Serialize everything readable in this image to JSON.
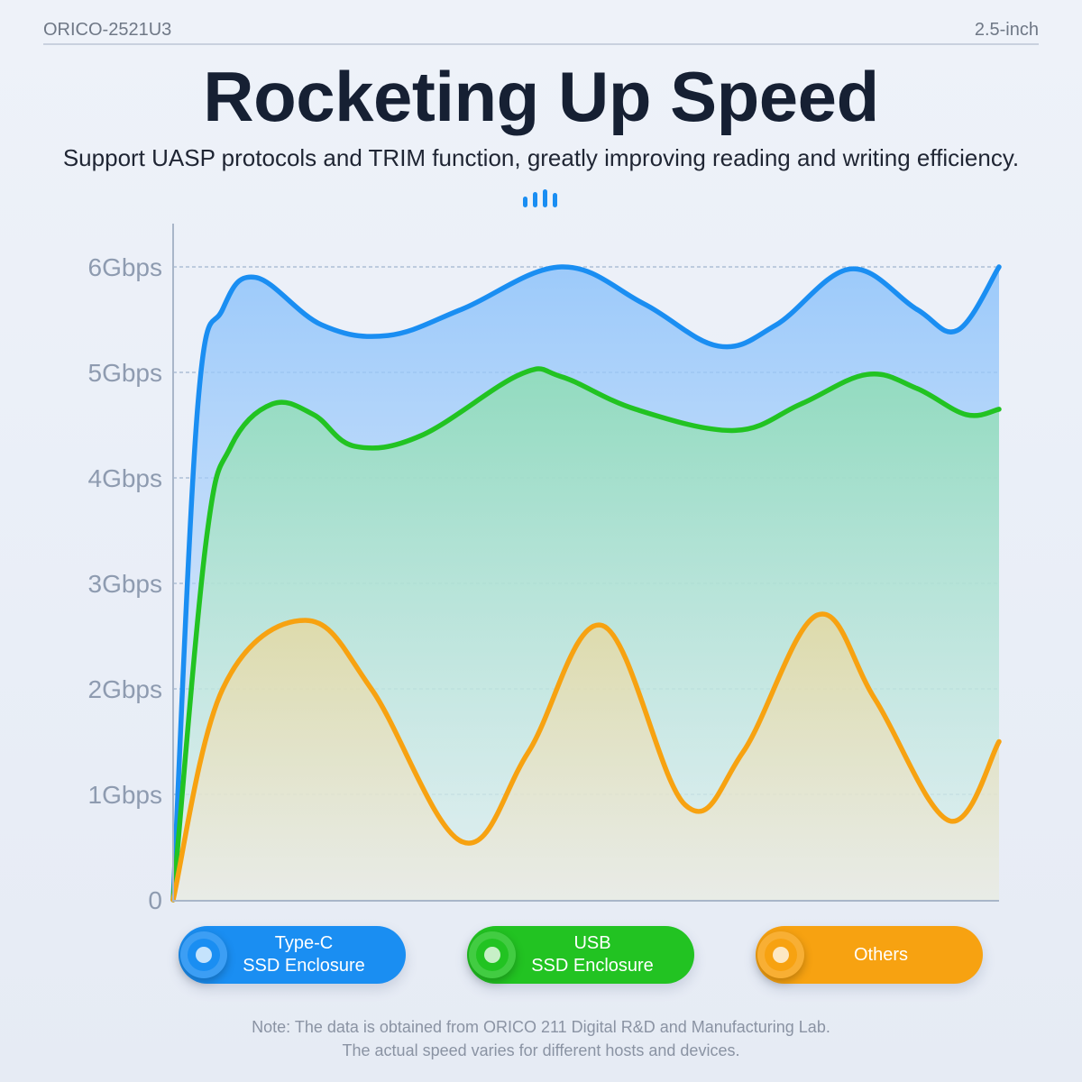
{
  "header": {
    "model": "ORICO-2521U3",
    "size": "2.5-inch",
    "title": "Rocketing Up Speed",
    "subtitle": "Support UASP protocols and TRIM function, greatly improving reading and writing efficiency."
  },
  "icons": {
    "header_icon": "signal-bars-icon"
  },
  "colors": {
    "accent": "#1a8ef2",
    "typec": "#1a8ef2",
    "usb": "#22c322",
    "others": "#f7a211",
    "grid": "#8fa7c4"
  },
  "chart_data": {
    "type": "line",
    "title": "",
    "xlabel": "",
    "ylabel": "",
    "y_ticks": [
      "0",
      "1Gbps",
      "2Gbps",
      "3Gbps",
      "4Gbps",
      "5Gbps",
      "6Gbps"
    ],
    "ylim": [
      0,
      6
    ],
    "xlim": [
      0,
      1
    ],
    "grid": true,
    "legend_position": "bottom",
    "series": [
      {
        "name": "Type-C\nSSD Enclosure",
        "color": "#1a8ef2",
        "x": [
          0,
          0.03,
          0.06,
          0.1,
          0.18,
          0.26,
          0.35,
          0.47,
          0.57,
          0.66,
          0.73,
          0.82,
          0.9,
          0.95,
          1
        ],
        "values": [
          0,
          4.7,
          5.6,
          5.9,
          5.45,
          5.35,
          5.6,
          6.0,
          5.65,
          5.25,
          5.45,
          5.98,
          5.6,
          5.4,
          6.0
        ]
      },
      {
        "name": "USB\nSSD Enclosure",
        "color": "#22c322",
        "x": [
          0,
          0.04,
          0.07,
          0.12,
          0.17,
          0.22,
          0.3,
          0.42,
          0.47,
          0.56,
          0.68,
          0.76,
          0.84,
          0.9,
          0.96,
          1
        ],
        "values": [
          0,
          3.4,
          4.3,
          4.7,
          4.6,
          4.3,
          4.4,
          4.98,
          4.96,
          4.65,
          4.45,
          4.7,
          4.98,
          4.85,
          4.6,
          4.65
        ]
      },
      {
        "name": "Others",
        "color": "#f7a211",
        "x": [
          0,
          0.06,
          0.16,
          0.24,
          0.35,
          0.43,
          0.52,
          0.62,
          0.69,
          0.78,
          0.85,
          0.94,
          1
        ],
        "values": [
          0,
          2.0,
          2.65,
          2.0,
          0.55,
          1.4,
          2.6,
          0.9,
          1.4,
          2.7,
          1.9,
          0.75,
          1.5
        ]
      }
    ]
  },
  "note": "Note: The data is obtained from ORICO 211 Digital R&D and Manufacturing Lab.\nThe actual speed varies for different hosts and devices."
}
